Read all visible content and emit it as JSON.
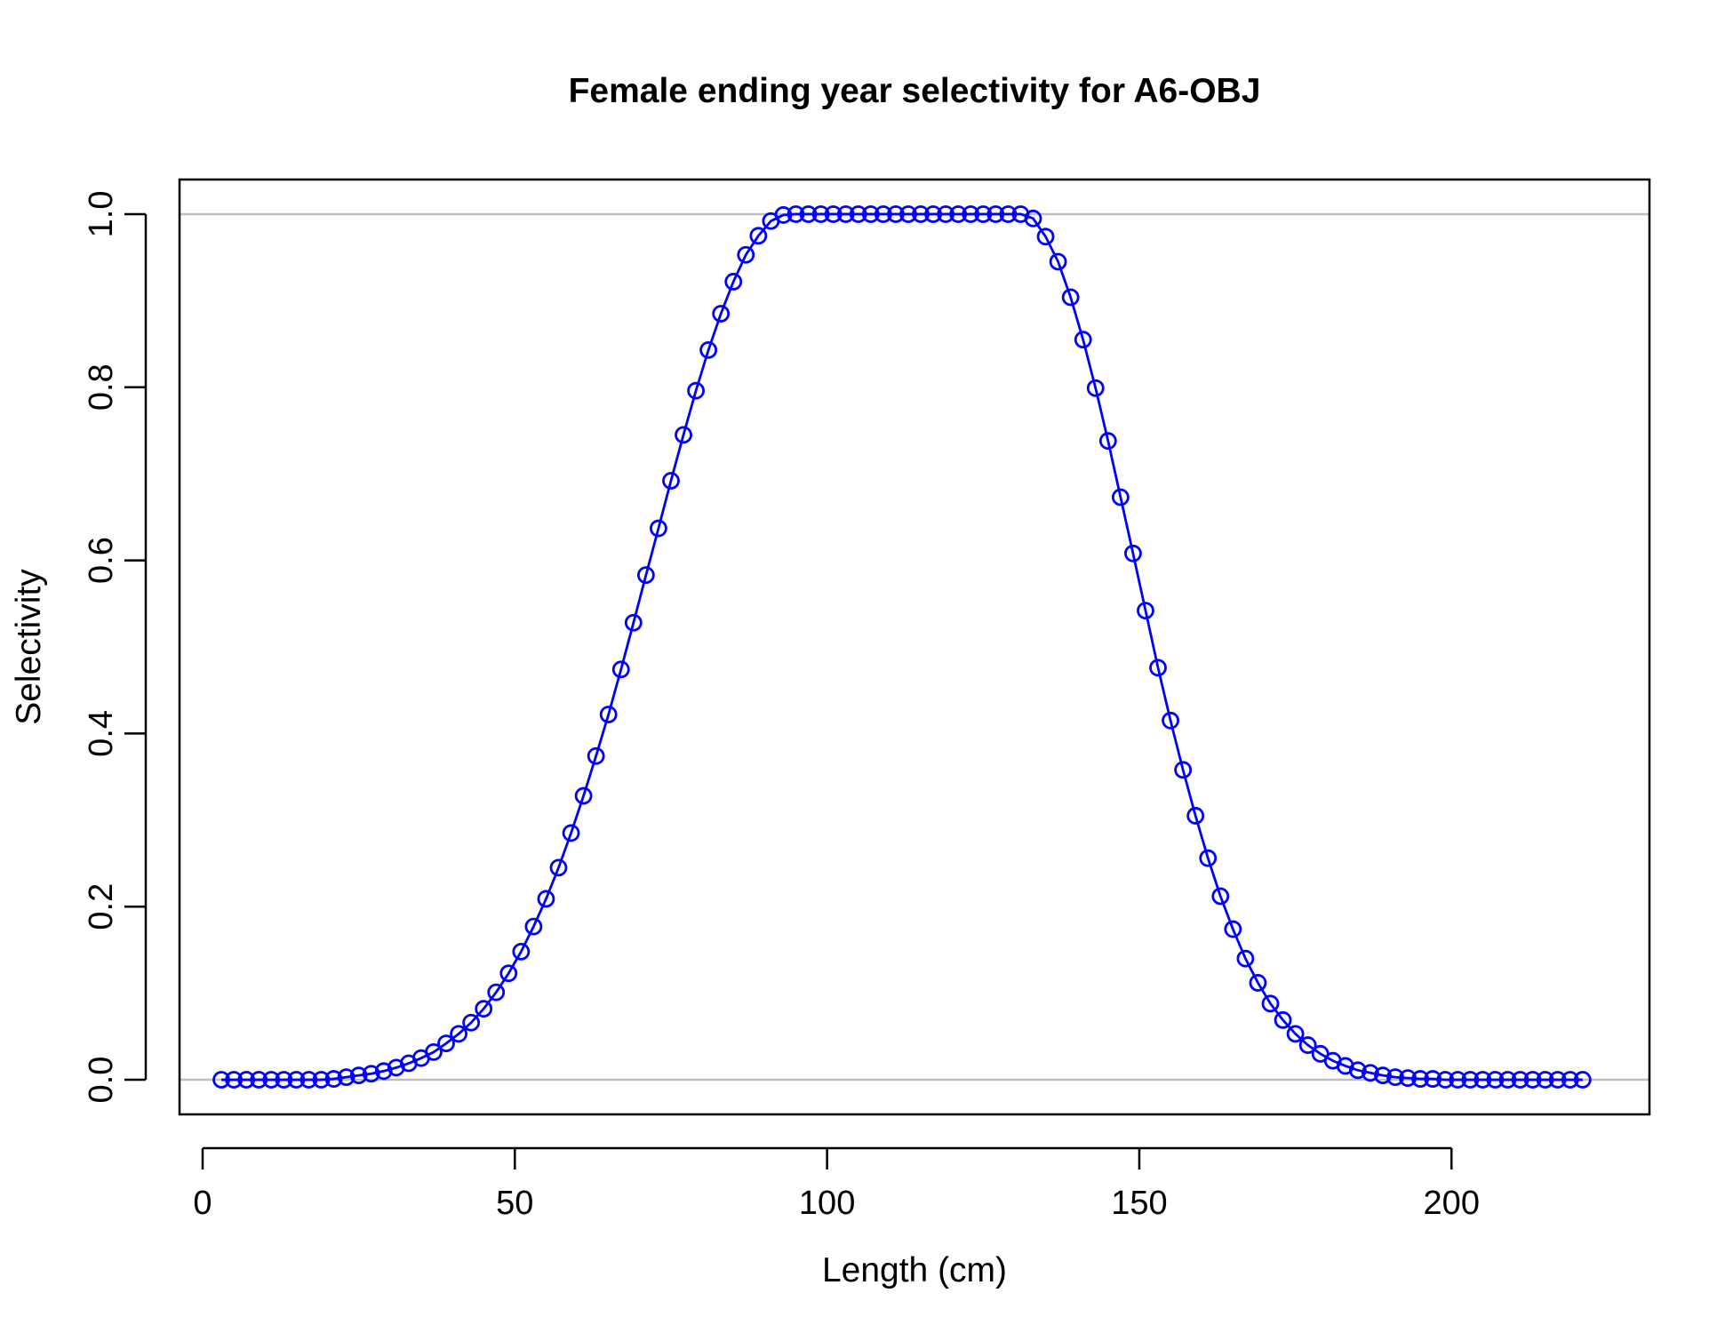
{
  "chart_data": {
    "type": "line",
    "title": "Female ending year selectivity for A6-OBJ",
    "xlabel": "Length (cm)",
    "ylabel": "Selectivity",
    "xlim": [
      -3.7,
      231.7
    ],
    "ylim": [
      -0.04,
      1.04
    ],
    "xticks": [
      0,
      50,
      100,
      150,
      200
    ],
    "xtick_labels": [
      "0",
      "50",
      "100",
      "150",
      "200"
    ],
    "yticks": [
      0.0,
      0.2,
      0.4,
      0.6,
      0.8,
      1.0
    ],
    "ytick_labels": [
      "0.0",
      "0.2",
      "0.4",
      "0.6",
      "0.8",
      "1.0"
    ],
    "reference_lines_y": [
      0,
      1
    ],
    "reference_line_color": "#bebebe",
    "series_color": "#0000ff",
    "grid": false,
    "series": [
      {
        "x": [
          3,
          5,
          7,
          9,
          11,
          13,
          15,
          17,
          19,
          21,
          23,
          25,
          27,
          29,
          31,
          33,
          35,
          37,
          39,
          41,
          43,
          45,
          47,
          49,
          51,
          53,
          55,
          57,
          59,
          61,
          63,
          65,
          67,
          69,
          71,
          73,
          75,
          77,
          79,
          81,
          83,
          85,
          87,
          89,
          91,
          93,
          95,
          97,
          99,
          101,
          103,
          105,
          107,
          109,
          111,
          113,
          115,
          117,
          119,
          121,
          123,
          125,
          127,
          129,
          131,
          133,
          135,
          137,
          139,
          141,
          143,
          145,
          147,
          149,
          151,
          153,
          155,
          157,
          159,
          161,
          163,
          165,
          167,
          169,
          171,
          173,
          175,
          177,
          179,
          181,
          183,
          185,
          187,
          189,
          191,
          193,
          195,
          197,
          199,
          201,
          203,
          205,
          207,
          209,
          211,
          213,
          215,
          217,
          219,
          221
        ],
        "values": [
          0.0,
          0.0,
          0.0,
          0.0,
          0.0,
          0.0,
          0.0,
          0.0,
          0.0,
          0.001,
          0.003,
          0.005,
          0.007,
          0.01,
          0.014,
          0.019,
          0.025,
          0.032,
          0.042,
          0.053,
          0.066,
          0.082,
          0.101,
          0.123,
          0.148,
          0.177,
          0.209,
          0.245,
          0.285,
          0.328,
          0.374,
          0.422,
          0.474,
          0.528,
          0.583,
          0.637,
          0.692,
          0.745,
          0.796,
          0.843,
          0.885,
          0.922,
          0.953,
          0.975,
          0.992,
          0.999,
          1.0,
          1.0,
          1.0,
          1.0,
          1.0,
          1.0,
          1.0,
          1.0,
          1.0,
          1.0,
          1.0,
          1.0,
          1.0,
          1.0,
          1.0,
          1.0,
          1.0,
          1.0,
          1.0,
          0.995,
          0.974,
          0.945,
          0.904,
          0.855,
          0.799,
          0.738,
          0.673,
          0.608,
          0.542,
          0.476,
          0.415,
          0.358,
          0.305,
          0.256,
          0.212,
          0.174,
          0.14,
          0.112,
          0.088,
          0.069,
          0.053,
          0.04,
          0.03,
          0.022,
          0.016,
          0.011,
          0.008,
          0.005,
          0.003,
          0.002,
          0.001,
          0.001,
          0.0,
          0.0,
          0.0,
          0.0,
          0.0,
          0.0,
          0.0,
          0.0,
          0.0,
          0.0,
          0.0,
          0.0
        ]
      }
    ]
  }
}
